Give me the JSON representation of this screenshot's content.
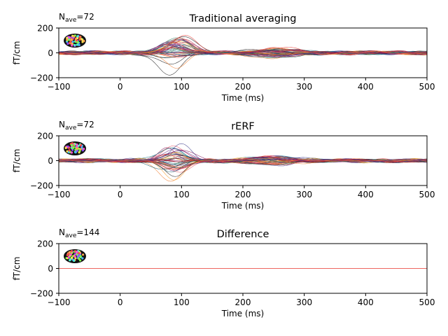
{
  "figure": {
    "background": "#ffffff",
    "trace_palette": [
      "#1a1a1a",
      "#0f5a66",
      "#2a7f8f",
      "#1f6e4a",
      "#6a2a8a",
      "#b8203c",
      "#e8332b",
      "#f07a2a",
      "#f5a030",
      "#e85060",
      "#8a1a5a",
      "#3a3a8a"
    ]
  },
  "chart_data": [
    {
      "type": "line",
      "panel": "traditional-averaging",
      "title": "Traditional averaging",
      "nave_prefix": "N",
      "nave_sub": "ave",
      "nave_value": "=72",
      "xlabel": "Time (ms)",
      "ylabel": "fT/cm",
      "xlim": [
        -100,
        500
      ],
      "ylim": [
        -200,
        200
      ],
      "xticks": [
        -100,
        0,
        100,
        200,
        300,
        400,
        500
      ],
      "yticks": [
        -200,
        0,
        200
      ],
      "xtick_labels": [
        "−100",
        "0",
        "100",
        "200",
        "300",
        "400",
        "500"
      ],
      "ytick_labels": [
        "−200",
        "0",
        "200"
      ],
      "n_channels": 48,
      "response": {
        "peak_time_ms": 90,
        "max_abs_amplitude_ft_cm": 190
      }
    },
    {
      "type": "line",
      "panel": "rerf",
      "title": "rERF",
      "nave_prefix": "N",
      "nave_sub": "ave",
      "nave_value": "=72",
      "xlabel": "Time (ms)",
      "ylabel": "fT/cm",
      "xlim": [
        -100,
        500
      ],
      "ylim": [
        -200,
        200
      ],
      "xticks": [
        -100,
        0,
        100,
        200,
        300,
        400,
        500
      ],
      "yticks": [
        -200,
        0,
        200
      ],
      "xtick_labels": [
        "−100",
        "0",
        "100",
        "200",
        "300",
        "400",
        "500"
      ],
      "ytick_labels": [
        "−200",
        "0",
        "200"
      ],
      "n_channels": 48,
      "response": {
        "peak_time_ms": 90,
        "max_abs_amplitude_ft_cm": 190
      }
    },
    {
      "type": "line",
      "panel": "difference",
      "title": "Difference",
      "nave_prefix": "N",
      "nave_sub": "ave",
      "nave_value": "=144",
      "xlabel": "Time (ms)",
      "ylabel": "fT/cm",
      "xlim": [
        -100,
        500
      ],
      "ylim": [
        -200,
        200
      ],
      "xticks": [
        -100,
        0,
        100,
        200,
        300,
        400,
        500
      ],
      "yticks": [
        -200,
        0,
        200
      ],
      "xtick_labels": [
        "−100",
        "0",
        "100",
        "200",
        "300",
        "400",
        "500"
      ],
      "ytick_labels": [
        "−200",
        "0",
        "200"
      ],
      "n_channels": 1,
      "response": {
        "peak_time_ms": 0,
        "max_abs_amplitude_ft_cm": 0
      }
    }
  ]
}
